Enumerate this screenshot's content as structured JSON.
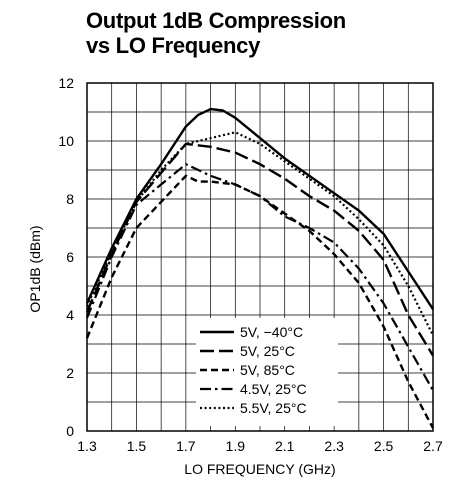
{
  "chart_data": {
    "type": "line",
    "title": [
      "Output 1dB Compression",
      "vs LO Frequency"
    ],
    "xlabel": "LO FREQUENCY (GHz)",
    "ylabel": "OP1dB (dBm)",
    "xlim": [
      1.3,
      2.7
    ],
    "ylim": [
      0,
      12
    ],
    "xticks": [
      "1.3",
      "1.5",
      "1.7",
      "1.9",
      "2.1",
      "2.3",
      "2.5",
      "2.7"
    ],
    "yticks": [
      "0",
      "2",
      "4",
      "6",
      "8",
      "10",
      "12"
    ],
    "grid": true,
    "legend_position": "bottom-center",
    "series": [
      {
        "name": "5V, −40°C",
        "dash": "solid",
        "x": [
          1.3,
          1.4,
          1.5,
          1.6,
          1.7,
          1.75,
          1.8,
          1.85,
          1.9,
          2.0,
          2.1,
          2.2,
          2.3,
          2.4,
          2.5,
          2.6,
          2.7
        ],
        "y": [
          4.4,
          6.3,
          8.0,
          9.2,
          10.5,
          10.9,
          11.1,
          11.05,
          10.8,
          10.1,
          9.4,
          8.8,
          8.2,
          7.6,
          6.8,
          5.5,
          4.2
        ]
      },
      {
        "name": "5V, 25°C",
        "dash": "long-dash",
        "x": [
          1.3,
          1.4,
          1.5,
          1.6,
          1.7,
          1.8,
          1.9,
          2.0,
          2.1,
          2.2,
          2.3,
          2.4,
          2.5,
          2.6,
          2.7
        ],
        "y": [
          4.1,
          6.1,
          7.9,
          8.9,
          9.9,
          9.8,
          9.6,
          9.2,
          8.7,
          8.1,
          7.6,
          6.9,
          5.9,
          4.0,
          2.6
        ]
      },
      {
        "name": "5V, 85°C",
        "dash": "short-dash",
        "x": [
          1.3,
          1.4,
          1.5,
          1.6,
          1.7,
          1.75,
          1.8,
          1.9,
          2.0,
          2.1,
          2.2,
          2.3,
          2.4,
          2.5,
          2.6,
          2.7
        ],
        "y": [
          3.2,
          5.3,
          7.0,
          7.9,
          8.8,
          8.6,
          8.6,
          8.5,
          8.1,
          7.5,
          6.9,
          6.1,
          5.1,
          3.6,
          1.7,
          0.1
        ]
      },
      {
        "name": "4.5V, 25°C",
        "dash": "dash-dot",
        "x": [
          1.3,
          1.4,
          1.5,
          1.6,
          1.7,
          1.8,
          1.9,
          2.0,
          2.1,
          2.2,
          2.3,
          2.4,
          2.5,
          2.6,
          2.7
        ],
        "y": [
          3.9,
          6.0,
          7.8,
          8.5,
          9.2,
          8.8,
          8.5,
          8.1,
          7.4,
          7.0,
          6.5,
          5.6,
          4.4,
          2.9,
          1.4
        ]
      },
      {
        "name": "5.5V, 25°C",
        "dash": "dotted",
        "x": [
          1.3,
          1.4,
          1.5,
          1.6,
          1.7,
          1.8,
          1.9,
          2.0,
          2.1,
          2.2,
          2.3,
          2.4,
          2.5,
          2.6,
          2.7
        ],
        "y": [
          4.3,
          6.2,
          7.9,
          9.0,
          9.9,
          10.1,
          10.3,
          9.9,
          9.3,
          8.7,
          8.1,
          7.3,
          6.4,
          5.0,
          3.3
        ]
      }
    ]
  }
}
